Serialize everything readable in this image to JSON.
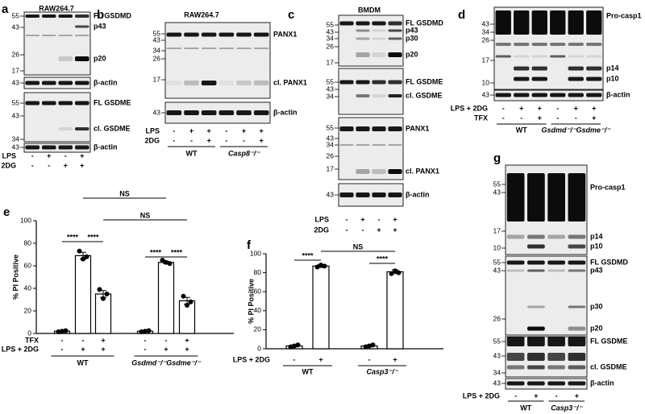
{
  "panels": [
    {
      "label": "a",
      "title": "RAW264.7",
      "blots": [
        {
          "markers": [
            55,
            43,
            26,
            17
          ],
          "bands": [
            "FL GSDMD",
            "p43",
            "p20"
          ]
        },
        {
          "markers": [
            43
          ],
          "bands": [
            "β-actin"
          ]
        },
        {
          "markers": [
            55,
            43,
            34
          ],
          "bands": [
            "FL GSDME",
            "cl. GSDME"
          ]
        },
        {
          "markers": [
            43
          ],
          "bands": [
            "β-actin"
          ]
        }
      ],
      "rows": [
        {
          "name": "LPS",
          "signs": [
            "-",
            "+",
            "-",
            "+"
          ]
        },
        {
          "name": "2DG",
          "signs": [
            "-",
            "-",
            "+",
            "+"
          ]
        }
      ]
    },
    {
      "label": "b",
      "title": "RAW264.7",
      "blots": [
        {
          "markers": [
            55,
            43,
            34,
            26,
            17
          ],
          "bands": [
            "PANX1",
            "cl. PANX1"
          ]
        },
        {
          "markers": [
            43
          ],
          "bands": [
            "β-actin"
          ]
        }
      ],
      "rows": [
        {
          "name": "LPS",
          "signs": [
            "-",
            "+",
            "+",
            "-",
            "+",
            "+"
          ]
        },
        {
          "name": "2DG",
          "signs": [
            "-",
            "-",
            "+",
            "-",
            "-",
            "+"
          ]
        }
      ],
      "groups": [
        "WT",
        "Casp8⁻/⁻"
      ]
    },
    {
      "label": "c",
      "title": "BMDM",
      "blots": [
        {
          "markers": [
            55,
            43,
            34,
            26,
            17
          ],
          "bands": [
            "FL GSDMD",
            "p43",
            "p30",
            "p20"
          ]
        },
        {
          "markers": [
            55,
            43,
            34
          ],
          "bands": [
            "FL GSDME",
            "cl. GSDME"
          ]
        },
        {
          "markers": [
            55,
            43,
            34,
            26,
            17
          ],
          "bands": [
            "PANX1",
            "cl. PANX1"
          ]
        },
        {
          "markers": [
            43
          ],
          "bands": [
            "β-actin"
          ]
        }
      ],
      "rows": [
        {
          "name": "LPS",
          "signs": [
            "-",
            "+",
            "-",
            "+"
          ]
        },
        {
          "name": "2DG",
          "signs": [
            "-",
            "-",
            "+",
            "+"
          ]
        }
      ]
    },
    {
      "label": "d",
      "blots": [
        {
          "markers": [
            43,
            34,
            26,
            17,
            10
          ],
          "bands": [
            "Pro-casp1",
            "p14",
            "p10"
          ]
        },
        {
          "markers": [
            43
          ],
          "bands": [
            "β-actin"
          ]
        }
      ],
      "rows": [
        {
          "name": "LPS + 2DG",
          "signs": [
            "-",
            "+",
            "+",
            "-",
            "+",
            "+"
          ]
        },
        {
          "name": "TFX",
          "signs": [
            "-",
            "-",
            "+",
            "-",
            "-",
            "+"
          ]
        }
      ],
      "groups": [
        "WT",
        "Gsdmd⁻/⁻Gsdme⁻/⁻"
      ]
    },
    {
      "label": "g",
      "blots": [
        {
          "markers": [
            55,
            43,
            17,
            10
          ],
          "bands": [
            "Pro-casp1",
            "p14",
            "p10"
          ]
        },
        {
          "markers": [
            55,
            43,
            26
          ],
          "bands": [
            "FL GSDMD",
            "p43",
            "p30",
            "p20"
          ]
        },
        {
          "markers": [
            55,
            43,
            34
          ],
          "bands": [
            "FL GSDME",
            "cl. GSDME"
          ]
        },
        {
          "markers": [
            43
          ],
          "bands": [
            "β-actin"
          ]
        }
      ],
      "rows": [
        {
          "name": "LPS + 2DG",
          "signs": [
            "-",
            "+",
            "-",
            "+"
          ]
        }
      ],
      "groups": [
        "WT",
        "Casp3⁻/⁻"
      ]
    }
  ],
  "chart_data": [
    {
      "type": "bar",
      "label": "e",
      "ylabel": "% PI Positive",
      "ylim": [
        0,
        100
      ],
      "yticks": [
        0,
        20,
        40,
        60,
        80,
        100
      ],
      "values": [
        2,
        69,
        35,
        2,
        63,
        29
      ],
      "errors": [
        0.5,
        3,
        3,
        0.5,
        1,
        3
      ],
      "points": [
        [
          1.5,
          2,
          2.5
        ],
        [
          73,
          66,
          68
        ],
        [
          39,
          31,
          35
        ],
        [
          1.5,
          2,
          2.5
        ],
        [
          65,
          63,
          62
        ],
        [
          33,
          25,
          28
        ]
      ],
      "color": "#ffffff",
      "rows": [
        {
          "name": "TFX",
          "signs": [
            "-",
            "-",
            "+",
            "-",
            "-",
            "+"
          ]
        },
        {
          "name": "LPS + 2DG",
          "signs": [
            "-",
            "+",
            "+",
            "-",
            "+",
            "+"
          ]
        }
      ],
      "groups": [
        "WT",
        "Gsdmd⁻/⁻Gsdme⁻/⁻"
      ],
      "significance": [
        "****",
        "****",
        "****",
        "****",
        "NS",
        "NS"
      ]
    },
    {
      "type": "bar",
      "label": "f",
      "ylabel": "% PI Positive",
      "ylim": [
        0,
        100
      ],
      "yticks": [
        0,
        20,
        40,
        60,
        80,
        100
      ],
      "values": [
        3,
        87,
        3,
        81
      ],
      "errors": [
        1,
        1.5,
        1,
        2
      ],
      "points": [
        [
          2,
          3,
          4
        ],
        [
          86,
          88,
          87
        ],
        [
          2,
          3,
          4
        ],
        [
          79,
          82,
          80
        ]
      ],
      "color": "#ffffff",
      "rows": [
        {
          "name": "LPS + 2DG",
          "signs": [
            "-",
            "+",
            "-",
            "+"
          ]
        }
      ],
      "groups": [
        "WT",
        "Casp3⁻/⁻"
      ],
      "significance": [
        "****",
        "****",
        "NS"
      ]
    }
  ]
}
